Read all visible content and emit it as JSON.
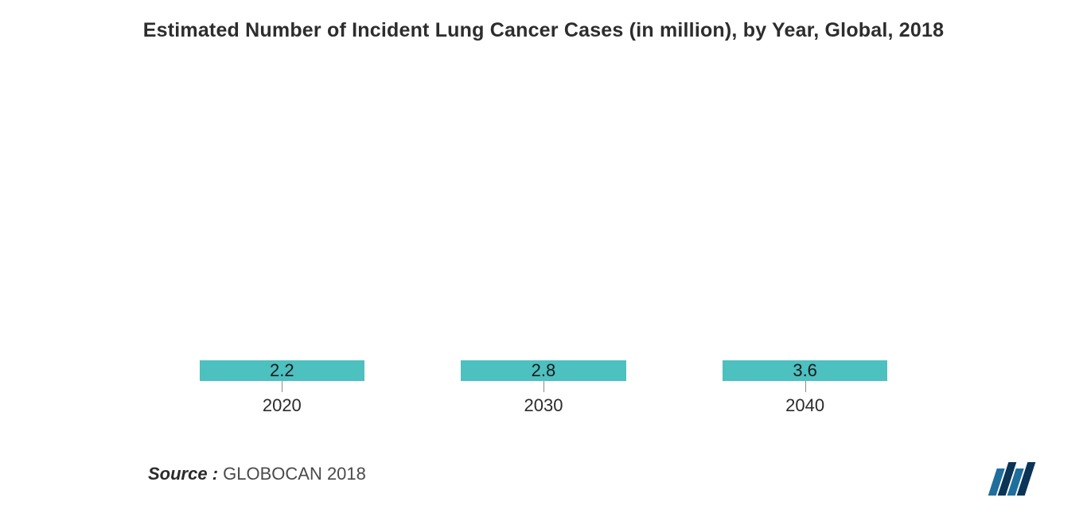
{
  "chart": {
    "type": "bar",
    "title": "Estimated Number of Incident Lung Cancer Cases (in million), by Year, Global, 2018",
    "title_fontsize": 25,
    "title_color": "#2d2d2d",
    "background_color": "#ffffff",
    "categories": [
      "2020",
      "2030",
      "2040"
    ],
    "values": [
      2.2,
      2.8,
      3.6
    ],
    "value_labels": [
      "2.2",
      "2.8",
      "3.6"
    ],
    "ylim": [
      0,
      4.0
    ],
    "bar_color": "#4dc0c0",
    "bar_width_pct": 63,
    "value_fontsize": 22,
    "value_color": "#1a1a1a",
    "xlabel_fontsize": 22,
    "xlabel_color": "#2b2b2b",
    "tick_color": "#8a8a8a"
  },
  "source": {
    "label": "Source :",
    "text": " GLOBOCAN 2018",
    "fontsize": 22,
    "label_color": "#2b2b2b",
    "text_color": "#4a4a4a"
  },
  "logo": {
    "name": "mordor-intelligence-logo",
    "bar_colors": [
      "#1f6f9e",
      "#0a3556",
      "#1f6f9e",
      "#0a3556"
    ]
  }
}
